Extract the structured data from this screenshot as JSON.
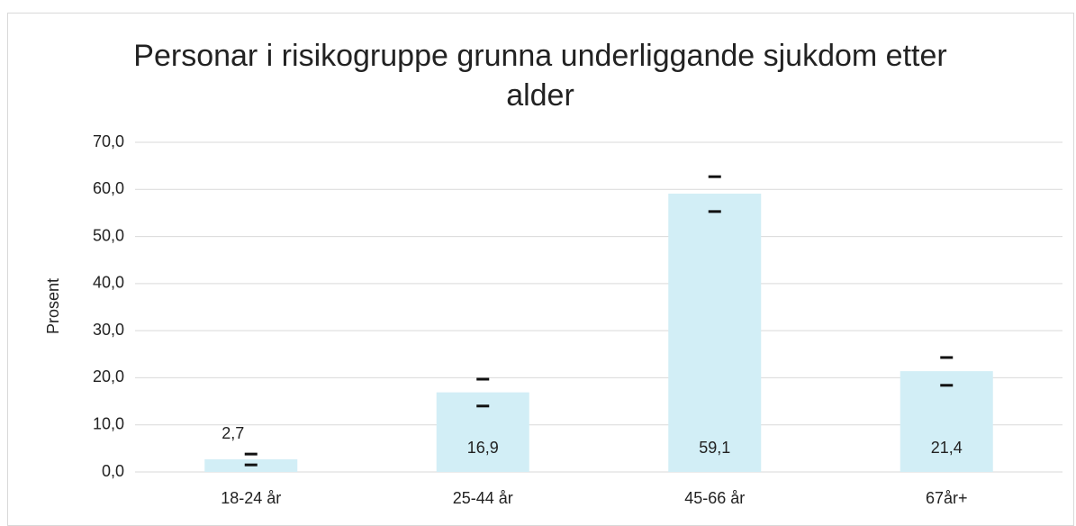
{
  "chart_data": {
    "type": "bar",
    "title": "Personar i risikogruppe grunna underliggande sjukdom etter alder",
    "y_label": "Prosent",
    "categories": [
      "18-24 år",
      "25-44 år",
      "45-66 år",
      "67år+"
    ],
    "values": [
      2.7,
      16.9,
      59.1,
      21.4
    ],
    "value_labels": [
      "2,7",
      "16,9",
      "59,1",
      "21,4"
    ],
    "lower": [
      1.5,
      14.0,
      55.3,
      18.4
    ],
    "upper": [
      3.8,
      19.7,
      62.7,
      24.3
    ],
    "color": "#d2eef6",
    "ylim": [
      0,
      70
    ],
    "yticks": [
      {
        "value": 0,
        "label": "0,0"
      },
      {
        "value": 10,
        "label": "10,0"
      },
      {
        "value": 20,
        "label": "20,0"
      },
      {
        "value": 30,
        "label": "30,0"
      },
      {
        "value": 40,
        "label": "40,0"
      },
      {
        "value": 50,
        "label": "50,0"
      },
      {
        "value": 60,
        "label": "60,0"
      },
      {
        "value": 70,
        "label": "70,0"
      }
    ],
    "grid": true
  }
}
